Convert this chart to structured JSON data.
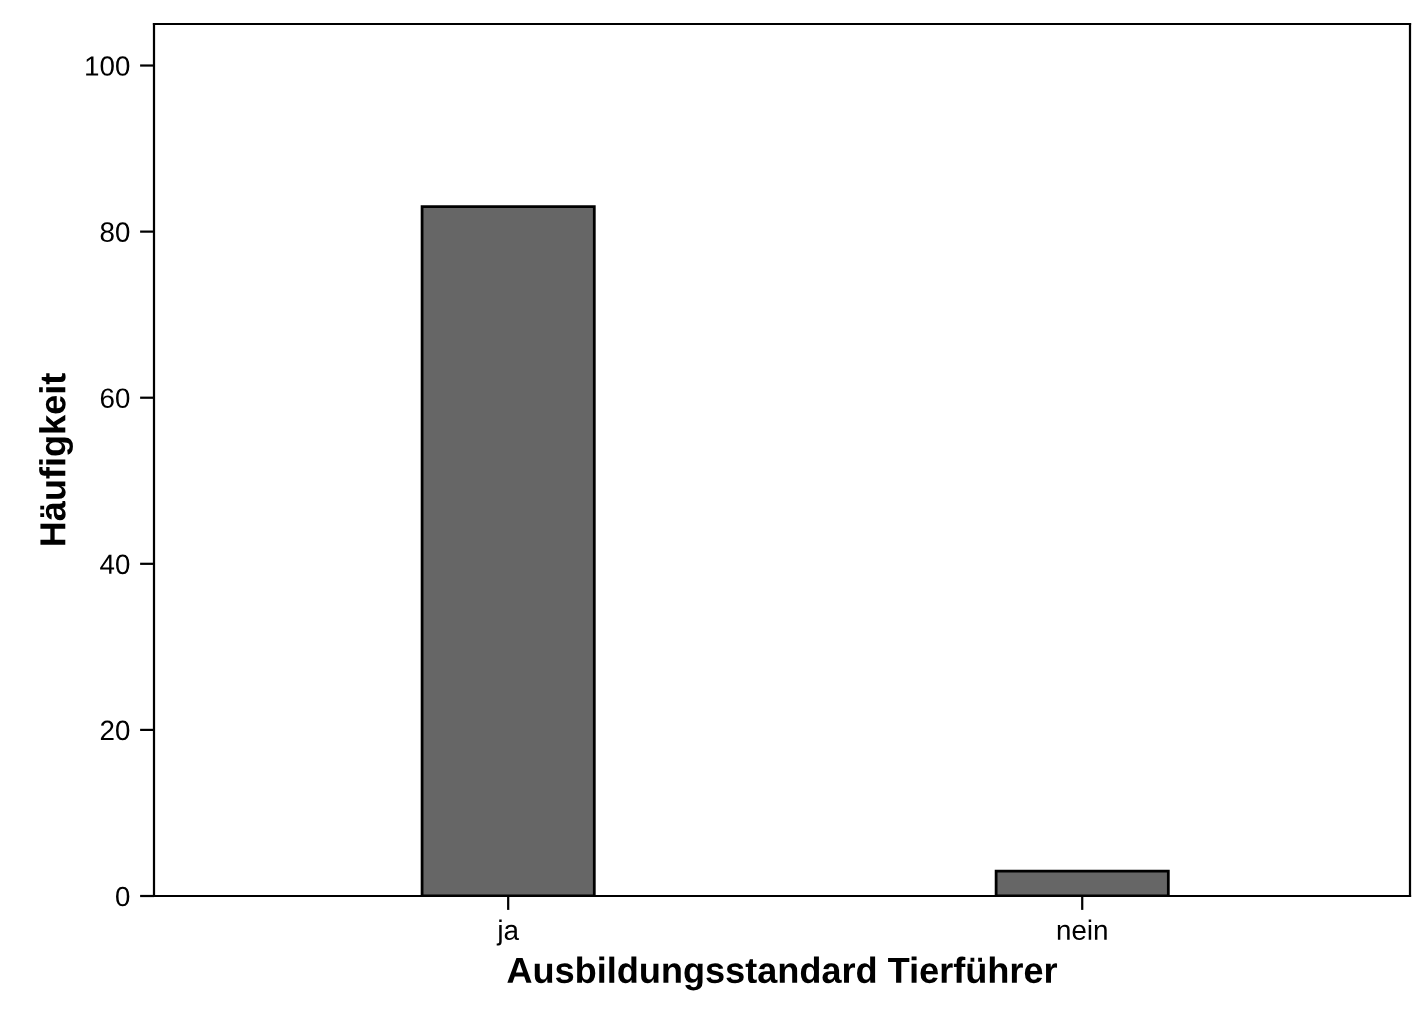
{
  "chart_data": {
    "type": "bar",
    "xlabel": "Ausbildungsstandard Tierführer",
    "ylabel": "Häufigkeit",
    "categories": [
      "ja",
      "nein"
    ],
    "values": [
      83,
      3
    ],
    "color": "#666666",
    "ylim": [
      0,
      105
    ],
    "yticks": [
      0,
      20,
      40,
      60,
      80,
      100
    ],
    "grid": false,
    "legend": false
  }
}
